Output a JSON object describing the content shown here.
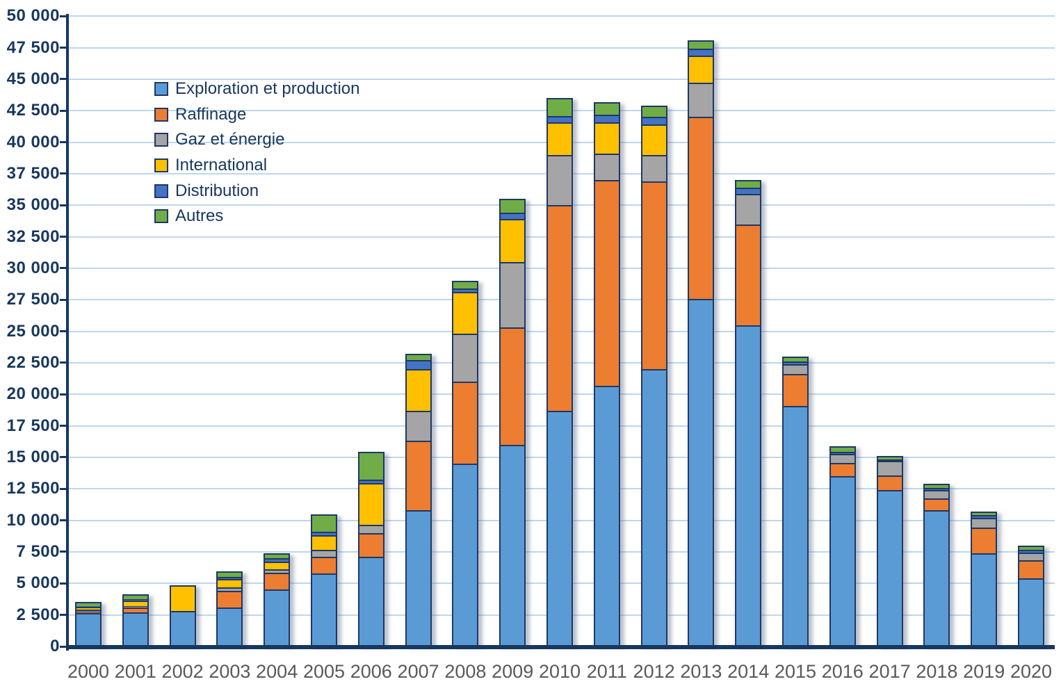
{
  "colors": {
    "background": "#ffffff",
    "bar_border": "#1F3864",
    "axis": "#17375E",
    "gridline": "#BDD7EE",
    "y_label_text": "#17375E",
    "x_label_text": "#595959",
    "legend_text": "#17375E"
  },
  "y_axis": {
    "min": 0,
    "max": 50000,
    "step": 2500,
    "tick_labels": [
      "0",
      "2 500",
      "5 000",
      "7 500",
      "10 000",
      "12 500",
      "15 000",
      "17 500",
      "20 000",
      "22 500",
      "25 000",
      "27 500",
      "30 000",
      "32 500",
      "35 000",
      "37 500",
      "40 000",
      "42 500",
      "45 000",
      "47 500",
      "50 000"
    ]
  },
  "chart_data": {
    "type": "bar",
    "stacked": true,
    "grid": true,
    "legend_position": "upper-left-inside",
    "title": "",
    "xlabel": "",
    "ylabel": "",
    "ylim": [
      0,
      50000
    ],
    "categories": [
      "2000",
      "2001",
      "2002",
      "2003",
      "2004",
      "2005",
      "2006",
      "2007",
      "2008",
      "2009",
      "2010",
      "2011",
      "2012",
      "2013",
      "2014",
      "2015",
      "2016",
      "2017",
      "2018",
      "2019",
      "2020"
    ],
    "series": [
      {
        "name": "Exploration et production",
        "color": "#5B9BD5",
        "values": [
          2650,
          2700,
          2800,
          3100,
          4500,
          5800,
          7100,
          10800,
          14500,
          16000,
          18700,
          20700,
          22000,
          27600,
          25500,
          19100,
          13500,
          12400,
          10800,
          7400,
          5400
        ]
      },
      {
        "name": "Raffinage",
        "color": "#ED7D31",
        "values": [
          100,
          400,
          0,
          1300,
          1350,
          1300,
          1900,
          5500,
          6500,
          9300,
          16300,
          16300,
          14900,
          14400,
          8000,
          2500,
          1050,
          1150,
          950,
          2050,
          1450
        ]
      },
      {
        "name": "Gaz et énergie",
        "color": "#A5A5A5",
        "values": [
          150,
          100,
          0,
          300,
          250,
          550,
          650,
          2400,
          3800,
          5200,
          4000,
          2100,
          2100,
          2700,
          2400,
          800,
          700,
          1150,
          650,
          750,
          600
        ]
      },
      {
        "name": "International",
        "color": "#FFC000",
        "values": [
          250,
          450,
          2050,
          650,
          650,
          1150,
          3300,
          3300,
          3300,
          3400,
          2600,
          2500,
          2400,
          2200,
          0,
          0,
          0,
          0,
          0,
          0,
          0
        ]
      },
      {
        "name": "Distribution",
        "color": "#4472C4",
        "values": [
          50,
          100,
          0,
          150,
          250,
          300,
          300,
          700,
          300,
          500,
          500,
          600,
          600,
          500,
          500,
          200,
          200,
          150,
          150,
          200,
          200
        ]
      },
      {
        "name": "Autres",
        "color": "#70AD47",
        "values": [
          350,
          400,
          0,
          450,
          400,
          1400,
          2200,
          500,
          600,
          1100,
          1400,
          1000,
          900,
          700,
          600,
          400,
          450,
          250,
          350,
          300,
          350
        ]
      }
    ],
    "totals": [
      3550,
      4150,
      4850,
      5950,
      7400,
      10500,
      15450,
      23200,
      29000,
      35500,
      43500,
      43200,
      42900,
      48100,
      37000,
      23000,
      15900,
      15100,
      12900,
      10700,
      8000
    ]
  }
}
